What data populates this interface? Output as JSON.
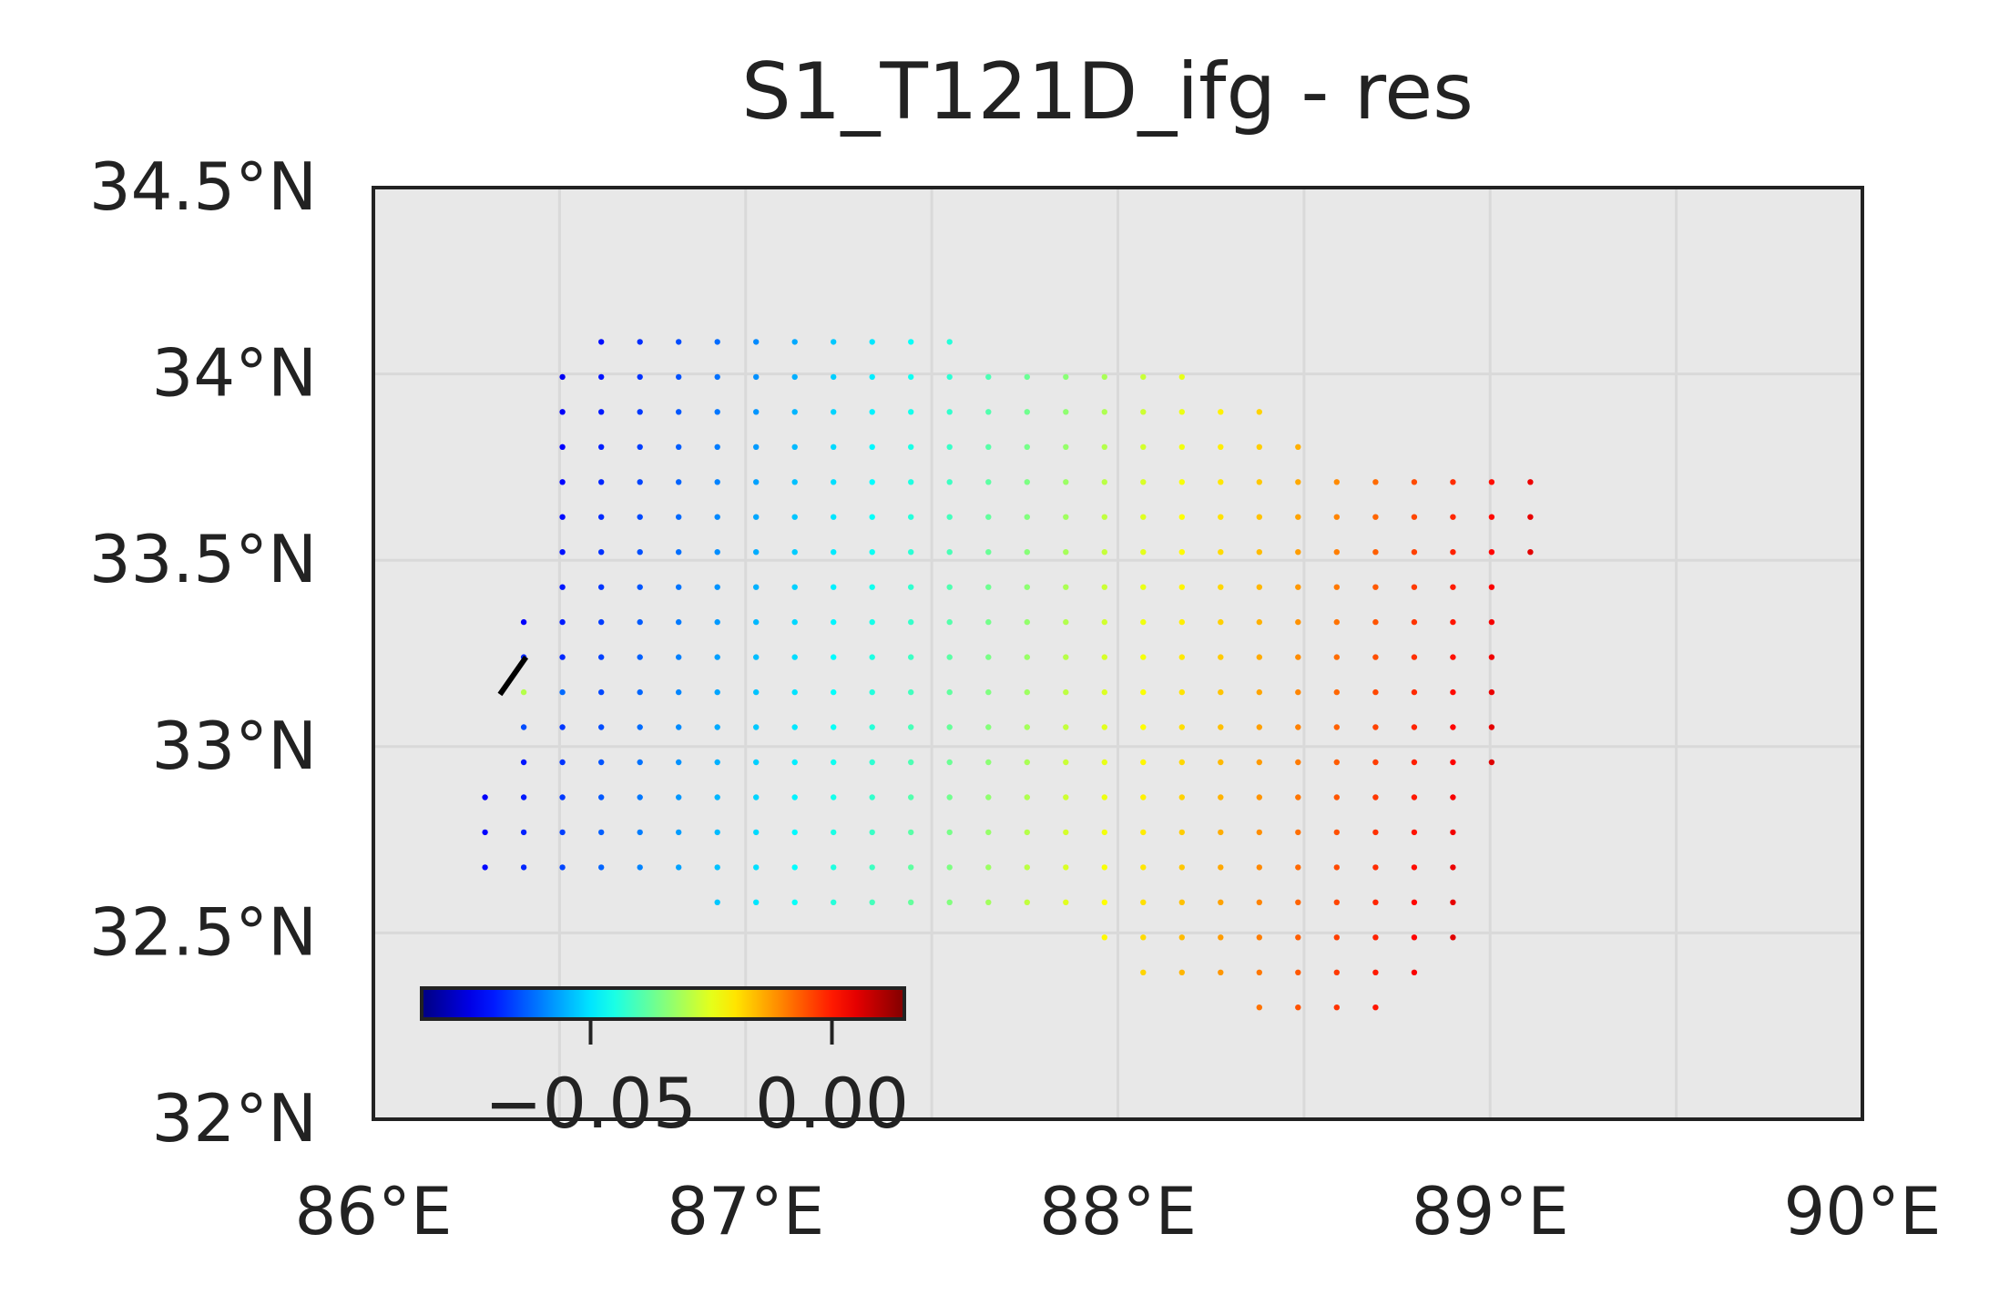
{
  "chart_data": {
    "type": "scatter",
    "title": "S1_T121D_ifg - res",
    "xlabel": "",
    "ylabel": "",
    "xlim": [
      86,
      90
    ],
    "ylim": [
      32,
      34.5
    ],
    "grid": true,
    "x_ticks": [
      86,
      87,
      88,
      89,
      90
    ],
    "x_tick_labels": [
      "86°E",
      "87°E",
      "88°E",
      "89°E",
      "90°E"
    ],
    "y_ticks": [
      32,
      32.5,
      33,
      33.5,
      34,
      34.5
    ],
    "y_tick_labels": [
      "32°N",
      "32.5°N",
      "33°N",
      "33.5°N",
      "34°N",
      "34.5°N"
    ],
    "colormap": "jet",
    "color_range": [
      -0.085,
      0.015
    ],
    "colorbar": {
      "placement": "lower-left",
      "ticks": [
        -0.05,
        0.0
      ],
      "tick_labels": [
        "−0.05",
        "0.00"
      ]
    },
    "fault_trace": {
      "lon": [
        86.34,
        86.41
      ],
      "lat": [
        33.14,
        33.24
      ],
      "color": "#000000"
    },
    "points": {
      "lon_range": [
        86.3,
        89.2
      ],
      "lat_range": [
        32.3,
        34.15
      ],
      "value_range": [
        -0.082,
        0.012
      ],
      "value_west": -0.075,
      "value_east": 0.01
    },
    "colors": {
      "plot_background": "#e8e8e8",
      "grid": "#d9d9d9",
      "frame": "#222222",
      "text": "#222222"
    }
  }
}
